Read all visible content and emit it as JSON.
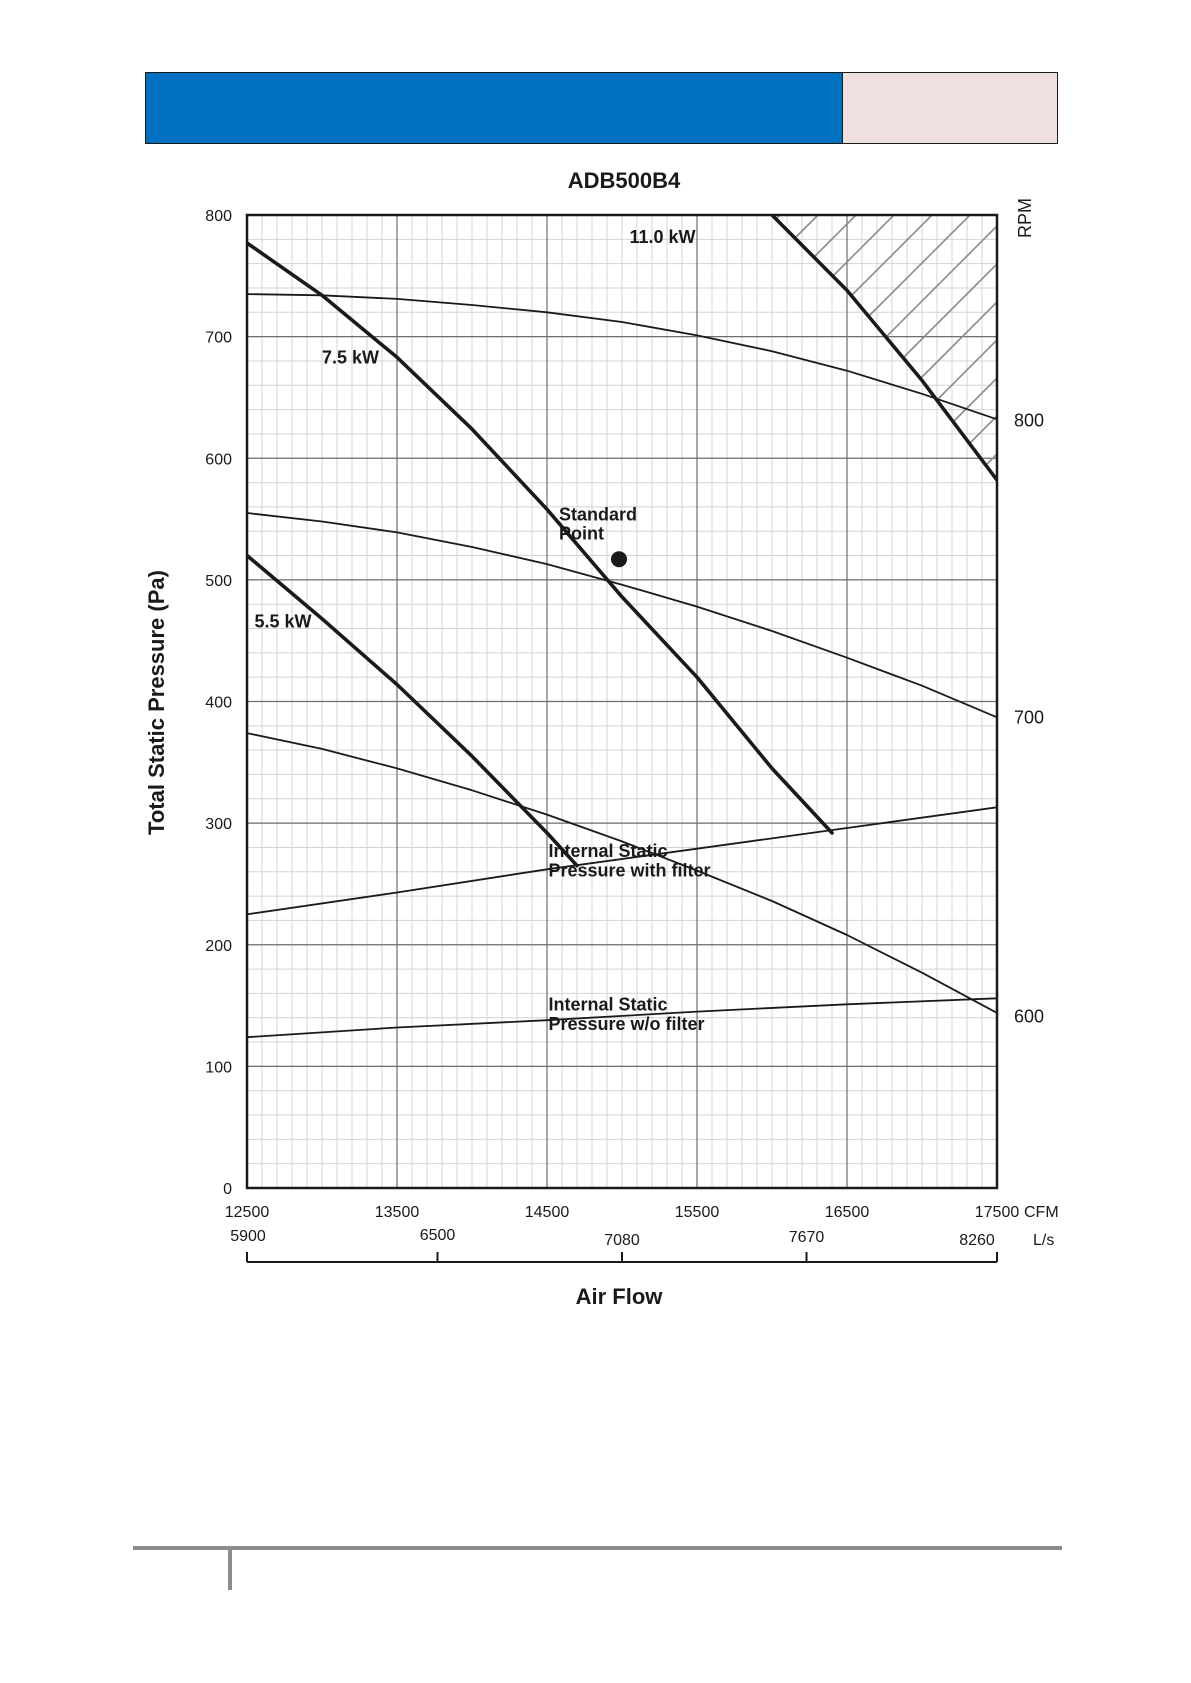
{
  "chart_data": {
    "type": "line",
    "title": "ADB500B4",
    "xlabel": "Air Flow",
    "ylabel": "Total Static Pressure (Pa)",
    "right_axis_label": "RPM",
    "x_unit": "CFM",
    "x_secondary_unit": "L/s",
    "xlim": [
      12500,
      17500
    ],
    "ylim": [
      0,
      800
    ],
    "grid": true,
    "x_ticks": [
      {
        "label": "12500",
        "value": 12500
      },
      {
        "label": "13500",
        "value": 13500
      },
      {
        "label": "14500",
        "value": 14500
      },
      {
        "label": "15500",
        "value": 15500
      },
      {
        "label": "16500",
        "value": 16500
      },
      {
        "label": "17500",
        "value": 17500
      }
    ],
    "x_secondary_ticks": [
      {
        "label": "5900",
        "value": 12500
      },
      {
        "label": "6500",
        "value": 13770
      },
      {
        "label": "7080",
        "value": 15000
      },
      {
        "label": "7670",
        "value": 16230
      },
      {
        "label": "8260",
        "value": 17500
      }
    ],
    "y_ticks": [
      {
        "label": "0",
        "value": 0
      },
      {
        "label": "100",
        "value": 100
      },
      {
        "label": "200",
        "value": 200
      },
      {
        "label": "300",
        "value": 300
      },
      {
        "label": "400",
        "value": 400
      },
      {
        "label": "500",
        "value": 500
      },
      {
        "label": "600",
        "value": 600
      },
      {
        "label": "700",
        "value": 700
      },
      {
        "label": "800",
        "value": 800
      }
    ],
    "rpm_labels": [
      {
        "label": "800",
        "y": 631
      },
      {
        "label": "700",
        "y": 387
      },
      {
        "label": "600",
        "y": 141
      }
    ],
    "series": [
      {
        "kind": "rpm",
        "x": [
          12500,
          13000,
          13500,
          14000,
          14500,
          15000,
          15500,
          16000,
          16500,
          17000,
          17500
        ],
        "y": [
          735,
          734,
          731,
          726,
          720,
          712,
          701,
          688,
          672,
          653,
          632
        ]
      },
      {
        "kind": "rpm",
        "x": [
          12500,
          13000,
          13500,
          14000,
          14500,
          15000,
          15500,
          16000,
          16500,
          17000,
          17500
        ],
        "y": [
          555,
          548,
          539,
          527,
          513,
          496,
          478,
          458,
          436,
          413,
          387
        ]
      },
      {
        "kind": "rpm",
        "x": [
          12500,
          13000,
          13500,
          14000,
          14500,
          15000,
          15500,
          16000,
          16500,
          17000,
          17500
        ],
        "y": [
          374,
          361,
          345,
          327,
          307,
          285,
          261,
          236,
          208,
          177,
          144
        ]
      },
      {
        "name": "11.0 kW",
        "kind": "power",
        "x": [
          16000,
          16500,
          17000,
          17500
        ],
        "y": [
          800,
          738,
          664,
          582
        ]
      },
      {
        "name": "7.5 kW",
        "kind": "power",
        "x": [
          12500,
          13000,
          13500,
          14000,
          14500,
          15000,
          15500,
          16000,
          16400
        ],
        "y": [
          777,
          734,
          683,
          624,
          558,
          486,
          420,
          345,
          292
        ]
      },
      {
        "name": "5.5 kW",
        "kind": "power",
        "x": [
          12500,
          13000,
          13500,
          14000,
          14500,
          14700
        ],
        "y": [
          520,
          468,
          414,
          355,
          292,
          265
        ]
      },
      {
        "name": "Internal Static Pressure with filter",
        "kind": "system",
        "x": [
          12500,
          13500,
          14500,
          15500,
          16500,
          17500
        ],
        "y": [
          225,
          243,
          262,
          279,
          296,
          313
        ]
      },
      {
        "name": "Internal Static Pressure w/o filter",
        "kind": "system",
        "x": [
          12500,
          13500,
          14500,
          15500,
          16500,
          17500
        ],
        "y": [
          124,
          132,
          138,
          145,
          151,
          156
        ]
      }
    ],
    "markers": [
      {
        "name": "Standard Point",
        "x": 14980,
        "y": 517
      }
    ],
    "shaded_region": {
      "description": "hatched area right of 11.0 kW curve",
      "boundary_series": "11.0 kW"
    },
    "annotations": [
      {
        "text": "11.0 kW",
        "x": 15050,
        "y": 777
      },
      {
        "text": "7.5 kW",
        "x": 13000,
        "y": 678
      },
      {
        "text": "5.5 kW",
        "x": 12550,
        "y": 461
      },
      {
        "text": "Standard",
        "x": 14580,
        "y": 549
      },
      {
        "text": "Point",
        "x": 14580,
        "y": 533
      },
      {
        "text": "Internal Static",
        "x": 14510,
        "y": 272
      },
      {
        "text": "Pressure with filter",
        "x": 14510,
        "y": 256
      },
      {
        "text": "Internal Static",
        "x": 14510,
        "y": 146
      },
      {
        "text": "Pressure w/o filter",
        "x": 14510,
        "y": 130
      }
    ],
    "colors": {
      "curve": "#1a1a1a",
      "grid_major": "#6e6e6e",
      "grid_minor": "#d4d4d4",
      "hatch": "#8a8a8a"
    }
  }
}
